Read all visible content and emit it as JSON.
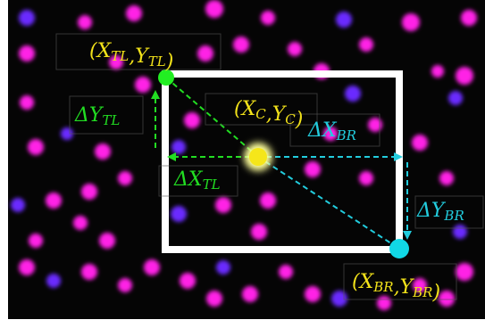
{
  "labels": {
    "top_left": {
      "pieces": [
        {
          "text": "(X"
        },
        {
          "sub": "TL"
        },
        {
          "text": ",Y"
        },
        {
          "sub": "TL"
        },
        {
          "text": ")"
        }
      ]
    },
    "delta_y_tl": {
      "pieces": [
        {
          "text": "ΔY"
        },
        {
          "sub": "TL"
        }
      ]
    },
    "center": {
      "pieces": [
        {
          "text": "(X"
        },
        {
          "sub": "C"
        },
        {
          "text": ",Y"
        },
        {
          "sub": "C"
        },
        {
          "text": ")"
        }
      ]
    },
    "delta_x_br": {
      "pieces": [
        {
          "text": "ΔX"
        },
        {
          "sub": "BR"
        }
      ]
    },
    "delta_x_tl": {
      "pieces": [
        {
          "text": "ΔX"
        },
        {
          "sub": "TL"
        }
      ]
    },
    "delta_y_br": {
      "pieces": [
        {
          "text": "ΔY"
        },
        {
          "sub": "BR"
        }
      ]
    },
    "bottom_right": {
      "pieces": [
        {
          "text": "(X"
        },
        {
          "sub": "BR"
        },
        {
          "text": ",Y"
        },
        {
          "sub": "BR"
        },
        {
          "text": ")"
        }
      ]
    }
  }
}
